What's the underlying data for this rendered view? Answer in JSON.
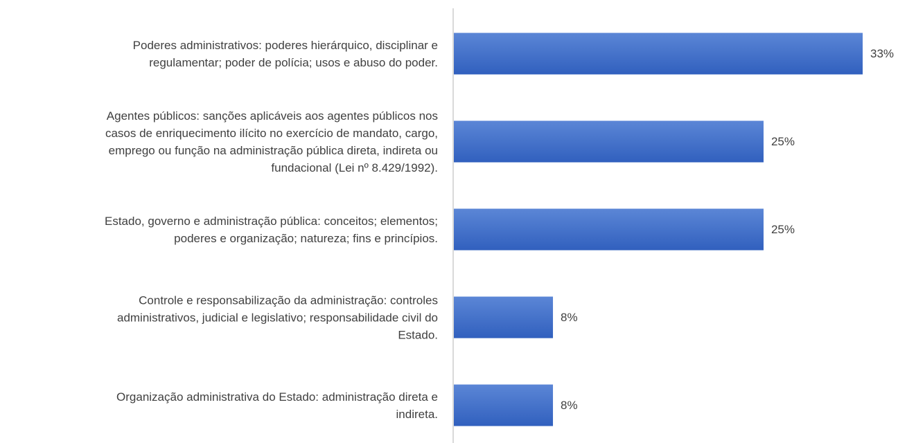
{
  "chart_data": {
    "type": "bar",
    "orientation": "horizontal",
    "categories": [
      "Poderes administrativos: poderes hierárquico, disciplinar e\nregulamentar; poder de polícia; usos e abuso do poder.",
      "Agentes públicos: sanções aplicáveis aos agentes públicos nos\ncasos de enriquecimento ilícito no exercício de mandato, cargo,\nemprego ou função na administração pública direta, indireta ou\nfundacional (Lei nº 8.429/1992).",
      "Estado, governo e administração pública: conceitos; elementos;\npoderes e organização; natureza; fins e princípios.",
      "Controle e responsabilização da administração: controles\nadministrativos, judicial e legislativo; responsabilidade civil do\nEstado.",
      "Organização administrativa do Estado: administração direta e\nindireta."
    ],
    "values": [
      33,
      25,
      25,
      8,
      8
    ],
    "value_labels": [
      "33%",
      "25%",
      "25%",
      "8%",
      "8%"
    ],
    "color": "#4472c4"
  }
}
